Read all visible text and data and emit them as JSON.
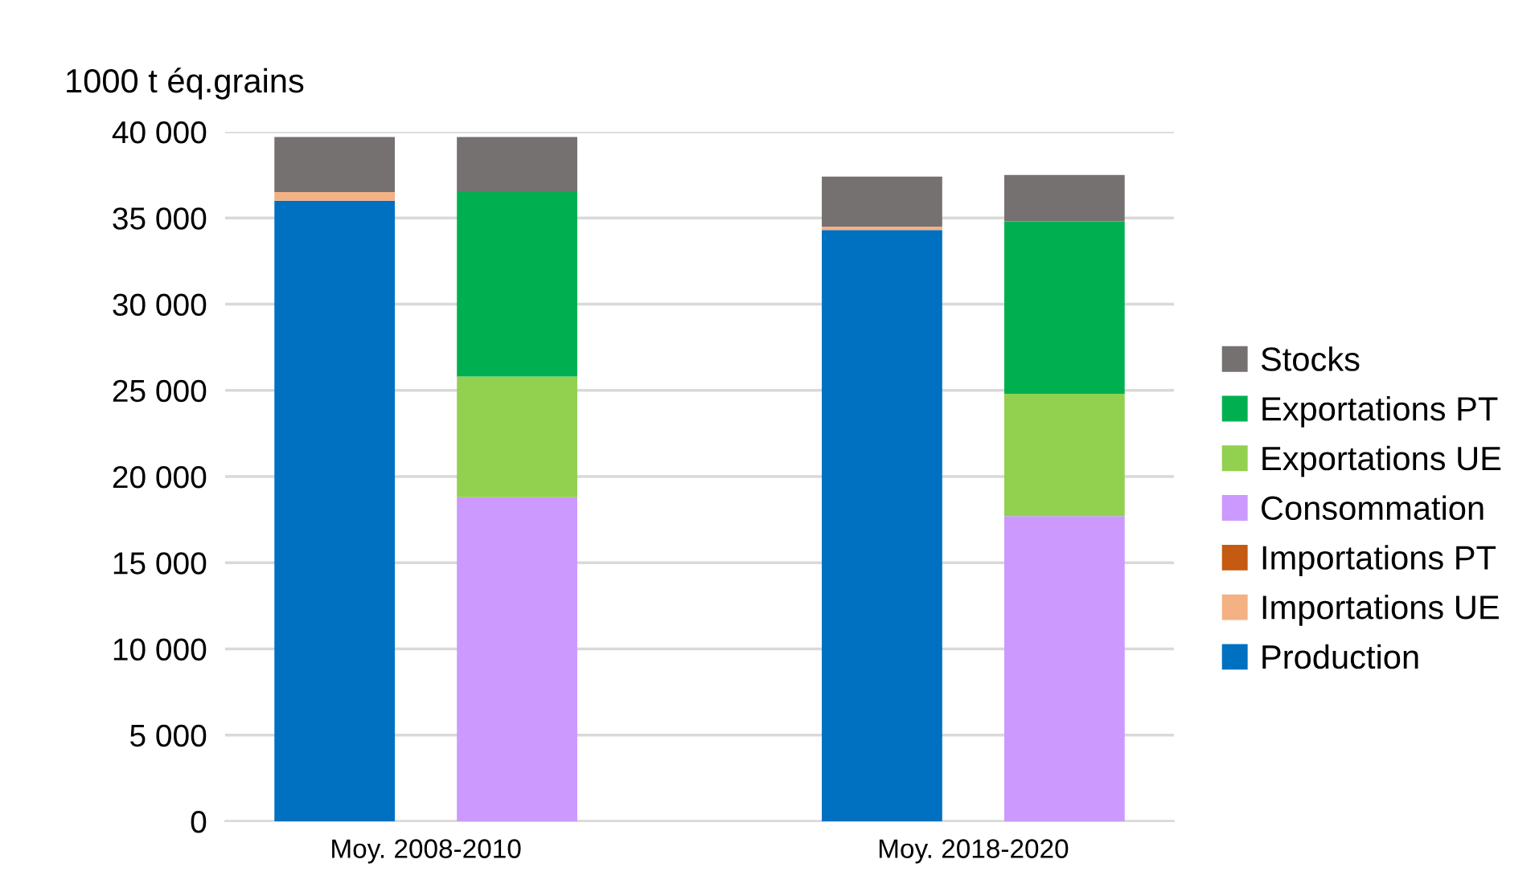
{
  "chart_data": {
    "type": "bar",
    "stacked": true,
    "ylabel": "1000 t éq.grains",
    "categories": [
      null,
      null,
      null,
      null,
      null
    ],
    "series": [
      {
        "name": "Production",
        "color": "#0070c0",
        "values": [
          36000,
          null,
          null,
          34300,
          null
        ]
      },
      {
        "name": "Importations UE",
        "color": "#f4b183",
        "values": [
          500,
          null,
          null,
          200,
          null
        ]
      },
      {
        "name": "Importations PT",
        "color": "#c55a11",
        "values": [
          0,
          null,
          null,
          0,
          null
        ]
      },
      {
        "name": "Consommation",
        "color": "#cc99ff",
        "values": [
          null,
          18800,
          null,
          null,
          17700
        ]
      },
      {
        "name": "Exportations UE",
        "color": "#92d050",
        "values": [
          null,
          7000,
          null,
          null,
          7100
        ]
      },
      {
        "name": "Exportations PT",
        "color": "#00b050",
        "values": [
          null,
          10700,
          null,
          null,
          10000
        ]
      },
      {
        "name": "Stocks",
        "color": "#767171",
        "values": [
          3200,
          3200,
          null,
          2900,
          2700
        ]
      }
    ],
    "annotations": [
      "Moy. 2008-2010",
      "Moy. 2018-2020"
    ],
    "ylim": [
      0,
      40000
    ],
    "yticks": [
      {
        "value": 0,
        "label": "0"
      },
      {
        "value": 5000,
        "label": "5 000"
      },
      {
        "value": 10000,
        "label": "10 000"
      },
      {
        "value": 15000,
        "label": "15 000"
      },
      {
        "value": 20000,
        "label": "20 000"
      },
      {
        "value": 25000,
        "label": "25 000"
      },
      {
        "value": 30000,
        "label": "30 000"
      },
      {
        "value": 35000,
        "label": "35 000"
      },
      {
        "value": 40000,
        "label": "40 000"
      }
    ],
    "grid": "y",
    "legend": "right"
  }
}
